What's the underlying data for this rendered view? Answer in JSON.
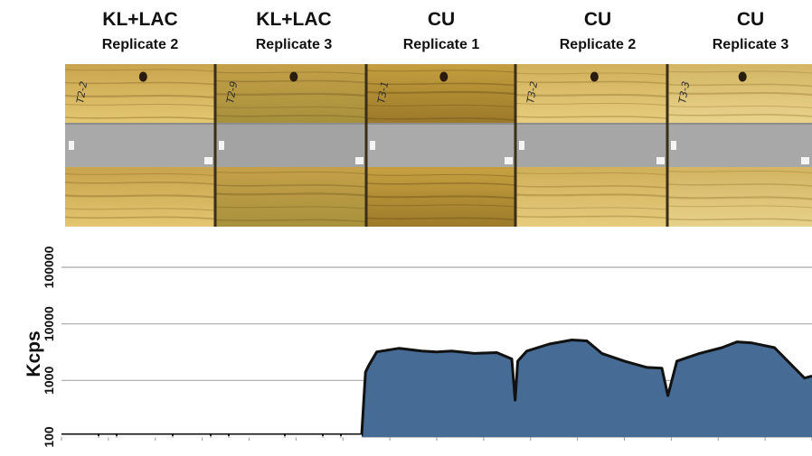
{
  "panels": [
    {
      "treatment": "KL+LAC",
      "replicate": "Replicate 2",
      "wood": "#c9a44e",
      "wood2": "#e3c670",
      "grain": "#8f6e2a",
      "xray": "#a9a9a9",
      "label": "T2-2"
    },
    {
      "treatment": "KL+LAC",
      "replicate": "Replicate 3",
      "wood": "#c4a048",
      "wood2": "#a8913c",
      "grain": "#7d6426",
      "xray": "#a3a3a3",
      "label": "T2-9"
    },
    {
      "treatment": "CU",
      "replicate": "Replicate 1",
      "wood": "#c59f3f",
      "wood2": "#9c7a2a",
      "grain": "#6e5218",
      "xray": "#aaaaaa",
      "label": "T3-1"
    },
    {
      "treatment": "CU",
      "replicate": "Replicate 2",
      "wood": "#d1b05a",
      "wood2": "#e6cc7d",
      "grain": "#9a7a34",
      "xray": "#a6a6a6",
      "label": "T3-2"
    },
    {
      "treatment": "CU",
      "replicate": "Replicate 3",
      "wood": "#d3b564",
      "wood2": "#e8d28a",
      "grain": "#9e8038",
      "xray": "#a8a8a8",
      "label": "T3-3"
    }
  ],
  "chart_data": {
    "type": "area",
    "ylabel": "Kcps",
    "yscale": "log",
    "ylim": [
      100,
      100000
    ],
    "yticks": [
      100,
      1000,
      10000,
      100000
    ],
    "grid": true,
    "x": [
      0,
      0.05,
      0.1,
      0.15,
      0.2,
      0.25,
      0.3,
      0.35,
      0.4,
      0.405,
      0.409,
      0.42,
      0.45,
      0.48,
      0.5,
      0.52,
      0.55,
      0.58,
      0.6,
      0.6045,
      0.608,
      0.62,
      0.65,
      0.68,
      0.7,
      0.72,
      0.75,
      0.78,
      0.8,
      0.808,
      0.82,
      0.85,
      0.88,
      0.9,
      0.92,
      0.95,
      0.99,
      1.0
    ],
    "values": [
      110,
      110,
      110,
      110,
      110,
      110,
      110,
      110,
      110,
      1400,
      1800,
      3200,
      3700,
      3300,
      3200,
      3300,
      3000,
      3100,
      2400,
      450,
      2200,
      3300,
      4400,
      5200,
      5000,
      3000,
      2200,
      1700,
      1650,
      540,
      2200,
      3000,
      3800,
      4800,
      4600,
      3800,
      1100,
      1200
    ],
    "series_color": "#466b94",
    "line_color": "#111111"
  }
}
